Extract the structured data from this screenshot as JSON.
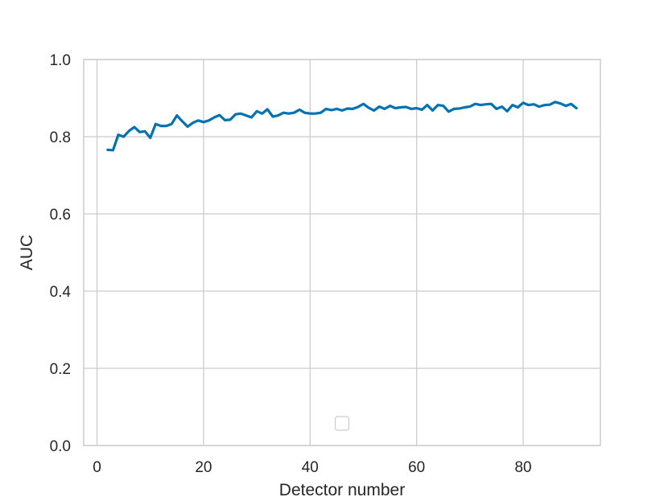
{
  "chart_data": {
    "type": "line",
    "xlabel": "Detector number",
    "ylabel": "AUC",
    "xlim": [
      -2.5,
      94.5
    ],
    "ylim": [
      0.0,
      1.0
    ],
    "xticks": [
      0,
      20,
      40,
      60,
      80
    ],
    "yticks": [
      0.0,
      0.2,
      0.4,
      0.6,
      0.8,
      1.0
    ],
    "xtick_labels": [
      "0",
      "20",
      "40",
      "60",
      "80"
    ],
    "ytick_labels": [
      "0.0",
      "0.2",
      "0.4",
      "0.6",
      "0.8",
      "1.0"
    ],
    "grid": true,
    "legend": {
      "placement": "lower center",
      "entries": []
    },
    "series": [
      {
        "color": "#0072b2",
        "x": [
          2,
          3,
          4,
          5,
          6,
          7,
          8,
          9,
          10,
          11,
          12,
          13,
          14,
          15,
          16,
          17,
          18,
          19,
          20,
          21,
          22,
          23,
          24,
          25,
          26,
          27,
          28,
          29,
          30,
          31,
          32,
          33,
          34,
          35,
          36,
          37,
          38,
          39,
          40,
          41,
          42,
          43,
          44,
          45,
          46,
          47,
          48,
          49,
          50,
          51,
          52,
          53,
          54,
          55,
          56,
          57,
          58,
          59,
          60,
          61,
          62,
          63,
          64,
          65,
          66,
          67,
          68,
          69,
          70,
          71,
          72,
          73,
          74,
          75,
          76,
          77,
          78,
          79,
          80,
          81,
          82,
          83,
          84,
          85,
          86,
          87,
          88,
          89,
          90
        ],
        "y": [
          0.766,
          0.765,
          0.805,
          0.8,
          0.815,
          0.825,
          0.812,
          0.814,
          0.797,
          0.833,
          0.828,
          0.828,
          0.833,
          0.855,
          0.84,
          0.826,
          0.836,
          0.842,
          0.838,
          0.842,
          0.85,
          0.856,
          0.843,
          0.844,
          0.858,
          0.86,
          0.855,
          0.85,
          0.866,
          0.86,
          0.871,
          0.852,
          0.855,
          0.862,
          0.86,
          0.862,
          0.87,
          0.862,
          0.86,
          0.86,
          0.862,
          0.872,
          0.869,
          0.872,
          0.868,
          0.873,
          0.872,
          0.877,
          0.885,
          0.875,
          0.868,
          0.878,
          0.872,
          0.88,
          0.874,
          0.876,
          0.877,
          0.872,
          0.874,
          0.87,
          0.882,
          0.868,
          0.882,
          0.88,
          0.865,
          0.872,
          0.873,
          0.876,
          0.878,
          0.885,
          0.882,
          0.884,
          0.885,
          0.872,
          0.878,
          0.866,
          0.882,
          0.876,
          0.888,
          0.882,
          0.884,
          0.878,
          0.882,
          0.883,
          0.89,
          0.886,
          0.88,
          0.885,
          0.874
        ]
      }
    ]
  }
}
